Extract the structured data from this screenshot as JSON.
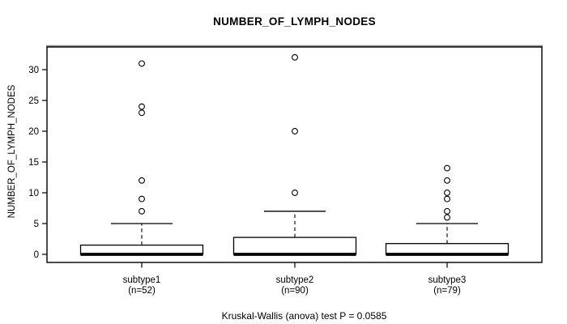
{
  "chart_data": {
    "type": "box",
    "title": "NUMBER_OF_LYMPH_NODES",
    "ylabel": "NUMBER_OF_LYMPH_NODES",
    "xlabel": "",
    "yticks": [
      0,
      5,
      10,
      15,
      20,
      25,
      30
    ],
    "ylim": [
      -1.4,
      33.7
    ],
    "grid": false,
    "legend": "none",
    "caption": "Kruskal-Wallis (anova) test P = 0.0585",
    "groups": [
      {
        "label": "subtype1",
        "n_label": "(n=52)",
        "n": 52,
        "q1": 0,
        "median": 0,
        "q3": 1.5,
        "whisker_low": 0,
        "whisker_high": 5,
        "outliers": [
          7,
          9,
          12,
          23,
          24,
          31
        ]
      },
      {
        "label": "subtype2",
        "n_label": "(n=90)",
        "n": 90,
        "q1": 0,
        "median": 0,
        "q3": 2.75,
        "whisker_low": 0,
        "whisker_high": 7,
        "outliers": [
          10,
          20,
          32
        ]
      },
      {
        "label": "subtype3",
        "n_label": "(n=79)",
        "n": 79,
        "q1": 0,
        "median": 0,
        "q3": 1.75,
        "whisker_low": 0,
        "whisker_high": 5,
        "outliers": [
          6,
          7,
          9,
          10,
          12,
          14
        ]
      }
    ],
    "colors": {
      "box_fill": "#ffffff",
      "line": "#000000",
      "frame_top_shadow": "#8f8f8f",
      "background": "#ffffff"
    }
  }
}
